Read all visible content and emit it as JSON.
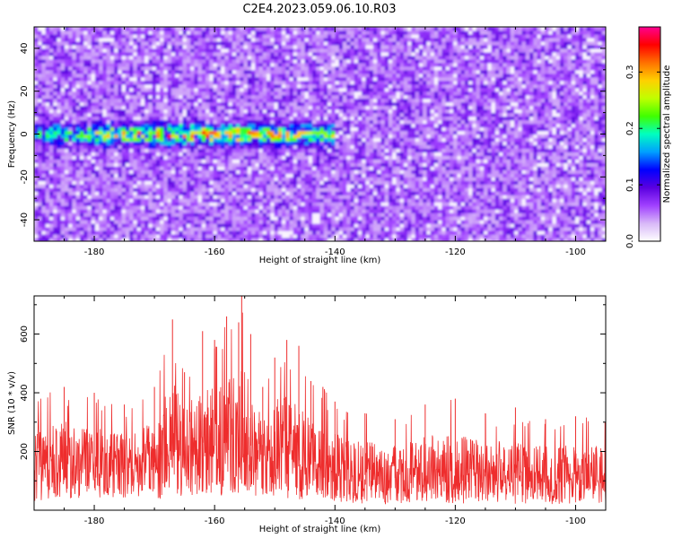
{
  "title": "C2E4.2023.059.06.10.R03",
  "chart_data": [
    {
      "type": "heatmap",
      "xlabel": "Height of straight line (km)",
      "ylabel": "Frequency (Hz)",
      "xlim": [
        -190,
        -95
      ],
      "ylim": [
        -50,
        50
      ],
      "x_ticks": [
        -180,
        -160,
        -140,
        -120,
        -100
      ],
      "y_ticks": [
        -40,
        -20,
        0,
        20,
        40
      ],
      "colorbar": {
        "label": "Normalized spectral amplitude",
        "range": [
          0,
          0.38
        ],
        "ticks": [
          0.0,
          0.1,
          0.2,
          0.3
        ],
        "tick_labels": [
          "0.0",
          "0.1",
          "0.2",
          "0.3"
        ],
        "colors": [
          "#ffffff",
          "#d8b8f8",
          "#a040ff",
          "#5a00e0",
          "#0000ff",
          "#00a0ff",
          "#00ffc0",
          "#40ff00",
          "#c0ff00",
          "#ffd000",
          "#ff7000",
          "#ff0000",
          "#ff0090"
        ]
      },
      "grid": false,
      "features": [
        {
          "label": "band",
          "x_range": [
            -190,
            -140
          ],
          "y_center": 0,
          "y_halfwidth": 5,
          "peak_amplitude": 0.38
        }
      ]
    },
    {
      "type": "line",
      "xlabel": "Height of straight line (km)",
      "ylabel": "SNR (10 * v/v)",
      "xlim": [
        -190,
        -95
      ],
      "ylim": [
        0,
        730
      ],
      "x_ticks": [
        -180,
        -160,
        -140,
        -120,
        -100
      ],
      "y_ticks": [
        200,
        400,
        600
      ],
      "line_color": "#ee2d2d",
      "grid": false,
      "envelope": {
        "x": [
          -190,
          -185,
          -180,
          -175,
          -170,
          -167,
          -165,
          -162,
          -160,
          -158,
          -156,
          -155.5,
          -154,
          -152,
          -150,
          -148,
          -146,
          -144,
          -142,
          -140,
          -135,
          -130,
          -125,
          -120,
          -115,
          -110,
          -105,
          -100,
          -95
        ],
        "upper": [
          390,
          420,
          400,
          360,
          420,
          650,
          470,
          610,
          580,
          660,
          640,
          730,
          600,
          420,
          520,
          580,
          560,
          440,
          420,
          370,
          330,
          310,
          360,
          380,
          330,
          350,
          310,
          320,
          310
        ],
        "lower": [
          30,
          40,
          40,
          40,
          30,
          50,
          40,
          50,
          60,
          40,
          50,
          60,
          40,
          40,
          50,
          40,
          30,
          40,
          40,
          30,
          20,
          20,
          30,
          20,
          30,
          20,
          20,
          20,
          20
        ],
        "mean": [
          150,
          160,
          150,
          140,
          150,
          200,
          180,
          230,
          220,
          230,
          230,
          240,
          220,
          180,
          200,
          190,
          170,
          160,
          150,
          130,
          120,
          110,
          120,
          125,
          115,
          110,
          105,
          110,
          105
        ]
      }
    }
  ]
}
